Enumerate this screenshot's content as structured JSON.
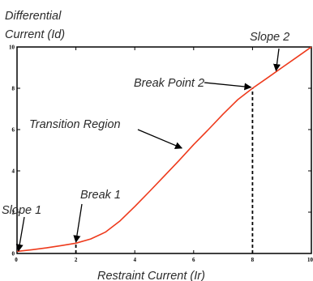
{
  "chart_data": {
    "type": "line",
    "ylabel": [
      "Differential",
      "Current (Id)"
    ],
    "xlabel": "Restraint Current (Ir)",
    "xlim": [
      0,
      10
    ],
    "ylim": [
      0,
      10
    ],
    "x_ticks": [
      {
        "value": 0,
        "label": "0"
      },
      {
        "value": 2,
        "label": "2"
      },
      {
        "value": 4,
        "label": "4"
      },
      {
        "value": 6,
        "label": "6"
      },
      {
        "value": 8,
        "label": "8"
      },
      {
        "value": 10,
        "label": "10"
      }
    ],
    "y_ticks": [
      {
        "value": 0,
        "label": "0"
      },
      {
        "value": 2,
        "label": "2"
      },
      {
        "value": 4,
        "label": "4"
      },
      {
        "value": 6,
        "label": "6"
      },
      {
        "value": 8,
        "label": "8"
      },
      {
        "value": 10,
        "label": "10"
      }
    ],
    "grid": false,
    "line_color": "#ee3a1c",
    "series": [
      {
        "x": [
          0,
          0.5,
          1,
          1.5,
          2,
          2.5,
          3,
          3.5,
          4,
          4.5,
          5,
          5.5,
          6,
          6.5,
          7,
          7.5,
          8,
          8.5,
          9,
          9.5,
          10
        ],
        "y": [
          0.1,
          0.18,
          0.27,
          0.38,
          0.5,
          0.7,
          1.03,
          1.58,
          2.27,
          3.0,
          3.75,
          4.5,
          5.27,
          6.0,
          6.75,
          7.45,
          8.0,
          8.5,
          9.0,
          9.5,
          10.0
        ]
      }
    ],
    "markers": [
      {
        "type": "dashed-vertical",
        "x": 2,
        "y_top": 0.5
      },
      {
        "type": "dashed-vertical",
        "x": 8,
        "y_top": 8.0
      }
    ],
    "annotations": [
      {
        "text": "Slope 1",
        "point": [
          0.05,
          0.12
        ]
      },
      {
        "text": "Break 1",
        "point": [
          2,
          0.55
        ]
      },
      {
        "text": "Transition Region",
        "point": [
          5.6,
          5.1
        ]
      },
      {
        "text": "Break Point 2",
        "point": [
          7.95,
          8.05
        ]
      },
      {
        "text": "Slope 2",
        "point": [
          8.8,
          8.85
        ]
      }
    ]
  }
}
